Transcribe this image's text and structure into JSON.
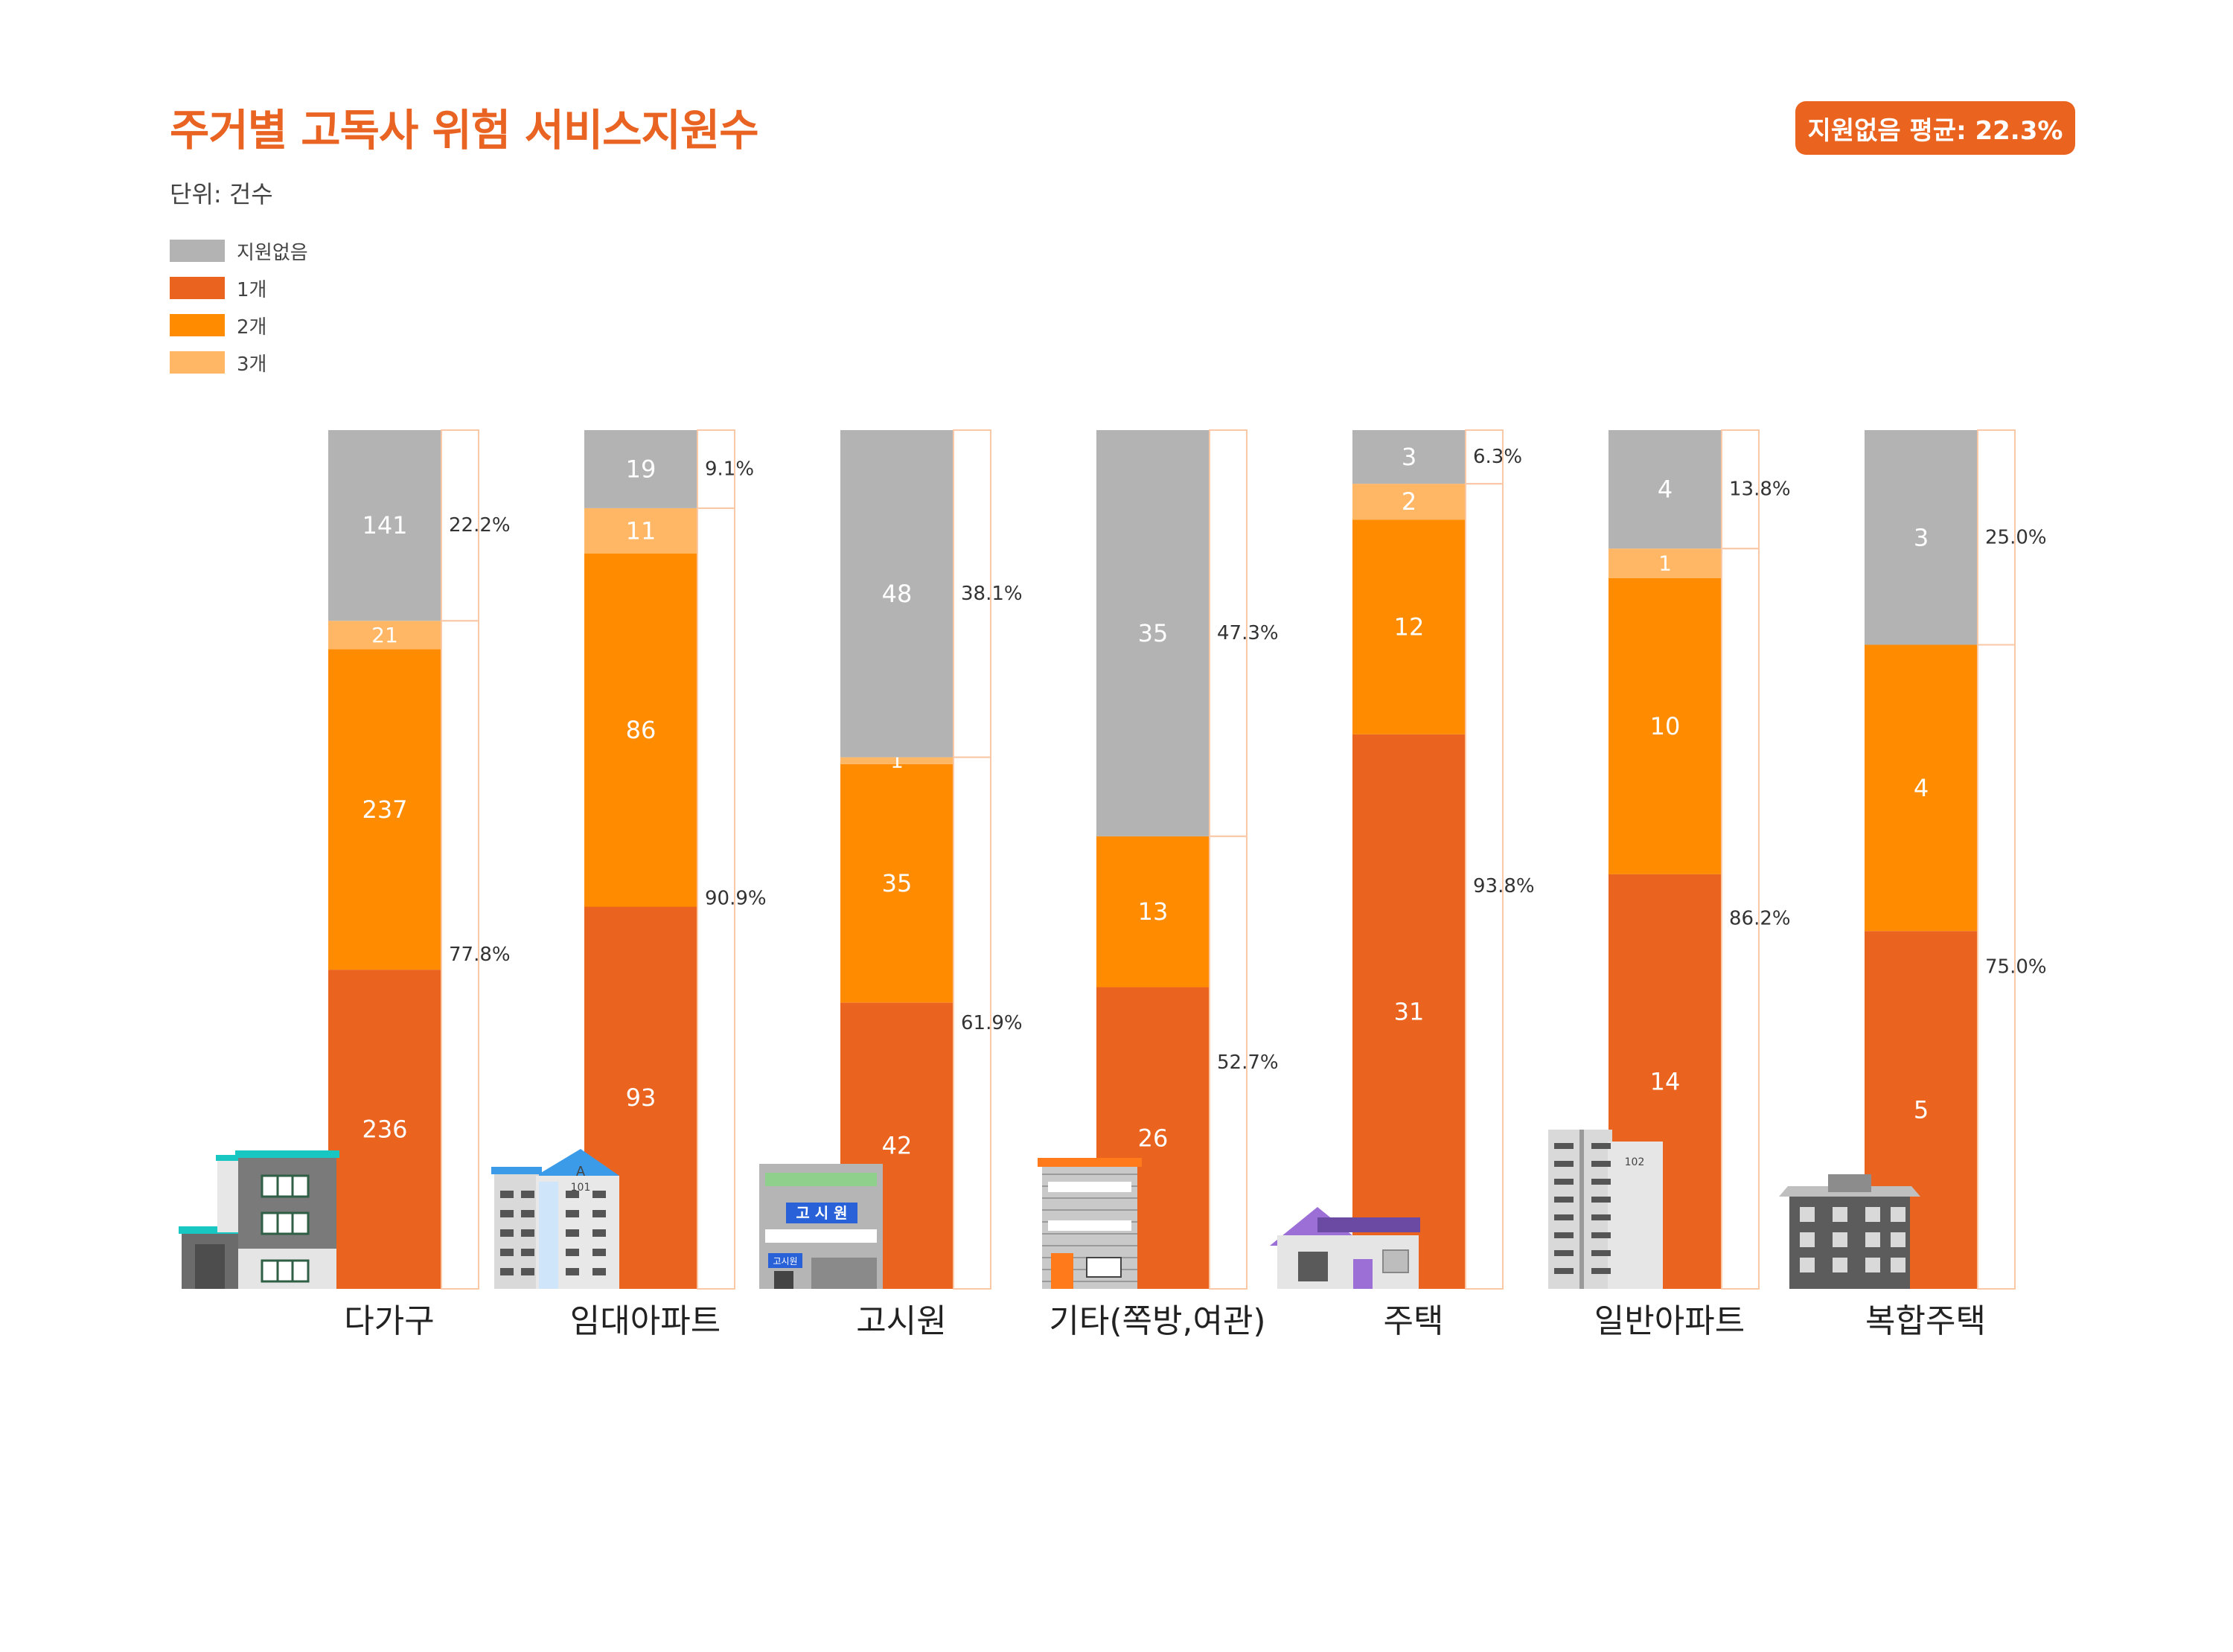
{
  "header": {
    "title": "주거별 고독사 위험 서비스지원수",
    "unit": "단위: 건수",
    "avg_badge": "지원없음 평균: 22.3%"
  },
  "legend": [
    {
      "label": "지원없음",
      "color": "#b3b3b3"
    },
    {
      "label": "1개",
      "color": "#ea6420"
    },
    {
      "label": "2개",
      "color": "#ff8c00"
    },
    {
      "label": "3개",
      "color": "#ffb766"
    }
  ],
  "chart_data": {
    "type": "bar",
    "stacked": true,
    "normalized": true,
    "categories": [
      "다가구",
      "임대아파트",
      "고시원",
      "기타(쪽방,여관)",
      "주택",
      "일반아파트",
      "복합주택"
    ],
    "stack_order_bottom_to_top": [
      "1개",
      "2개",
      "3개",
      "지원없음"
    ],
    "series": [
      {
        "name": "1개",
        "values": [
          236,
          93,
          42,
          26,
          31,
          14,
          5
        ]
      },
      {
        "name": "2개",
        "values": [
          237,
          86,
          35,
          13,
          12,
          10,
          4
        ]
      },
      {
        "name": "3개",
        "values": [
          21,
          11,
          1,
          null,
          2,
          1,
          null
        ]
      },
      {
        "name": "지원없음",
        "values": [
          141,
          19,
          48,
          35,
          3,
          4,
          3
        ]
      }
    ],
    "pct_no_support": [
      "22.2%",
      "9.1%",
      "38.1%",
      "47.3%",
      "6.3%",
      "13.8%",
      "25.0%"
    ],
    "pct_supported": [
      "77.8%",
      "90.9%",
      "61.9%",
      "52.7%",
      "93.8%",
      "86.2%",
      "75.0%"
    ],
    "icons": [
      "multi-family-house-icon",
      "rental-apartment-icon",
      "gosiwon-icon",
      "jjokbang-inn-icon",
      "house-icon",
      "apartment-icon",
      "multiplex-house-icon"
    ],
    "icon_labels": {
      "rental_apartment": [
        "A",
        "101"
      ],
      "gosiwon": [
        "고 시 원",
        "고시원"
      ],
      "apartment": [
        "102"
      ]
    }
  }
}
